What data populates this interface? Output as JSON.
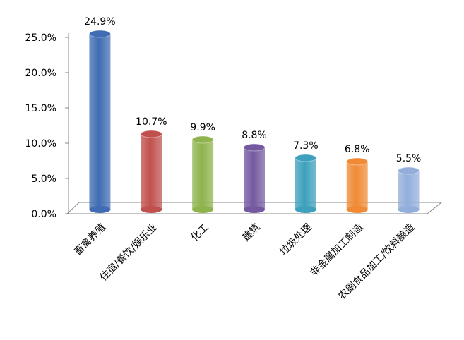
{
  "chart_data": {
    "type": "bar",
    "categories": [
      "畜禽养殖",
      "住宿/餐饮/娱乐业",
      "化工",
      "建筑",
      "垃圾处理",
      "非金属加工制造",
      "农副食品加工/饮料酿造"
    ],
    "values": [
      24.9,
      10.7,
      9.9,
      8.8,
      7.3,
      6.8,
      5.5
    ],
    "value_labels": [
      "24.9%",
      "10.7%",
      "9.9%",
      "8.8%",
      "7.3%",
      "6.8%",
      "5.5%"
    ],
    "colors": [
      "#3f6cb3",
      "#c0504d",
      "#8fb34d",
      "#7459a0",
      "#3ea0bd",
      "#f08a35",
      "#93aedb"
    ],
    "ylim": [
      0,
      25
    ],
    "yticks": [
      {
        "value": 0,
        "label": "0.0%"
      },
      {
        "value": 5,
        "label": "5.0%"
      },
      {
        "value": 10,
        "label": "10.0%"
      },
      {
        "value": 15,
        "label": "15.0%"
      },
      {
        "value": 20,
        "label": "20.0%"
      },
      {
        "value": 25,
        "label": "25.0%"
      }
    ],
    "grid": false
  }
}
